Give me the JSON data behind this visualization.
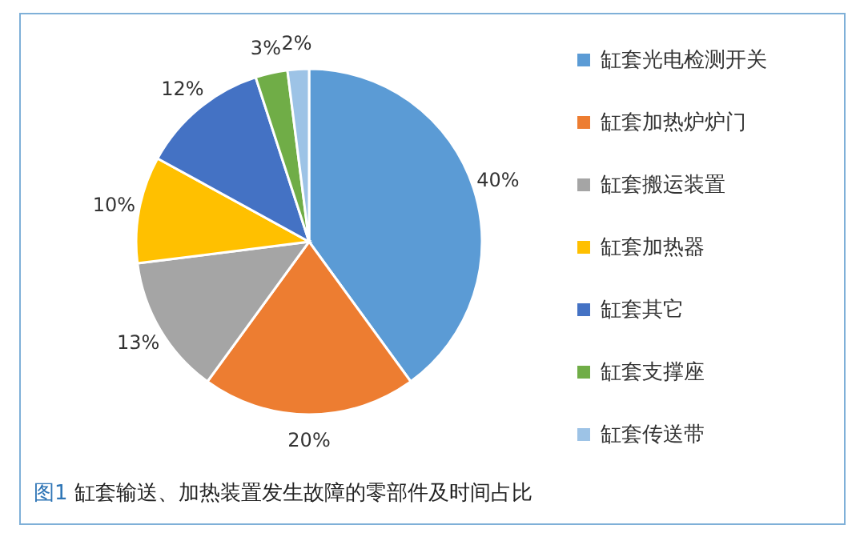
{
  "chart_data": {
    "type": "pie",
    "title": "图1 缸套输送、加热装置发生故障的零部件及时间占比",
    "categories": [
      "缸套光电检测开关",
      " 缸套加热炉炉门",
      "缸套搬运装置",
      "缸套加热器",
      "缸套其它",
      "缸套支撑座",
      "缸套传送带"
    ],
    "values": [
      40,
      20,
      13,
      10,
      12,
      3,
      2
    ],
    "colors": [
      "#5b9bd5",
      "#ed7d31",
      "#a5a5a5",
      "#ffc000",
      "#4472c4",
      "#70ad47",
      "#9dc3e6"
    ],
    "value_labels": [
      "40%",
      "20%",
      "13%",
      "10%",
      "12%",
      "3%",
      "2%"
    ],
    "legend": "right"
  }
}
